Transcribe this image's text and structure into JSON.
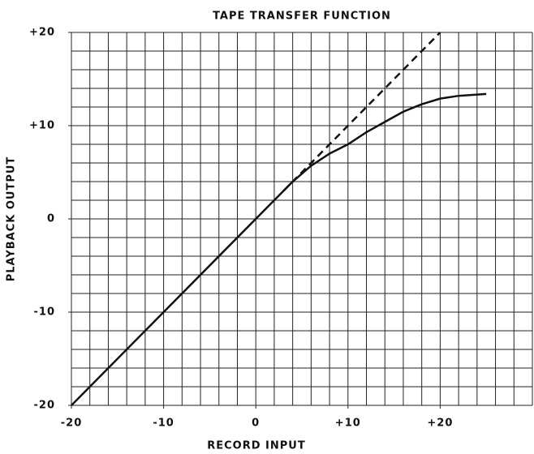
{
  "chart_data": {
    "type": "line",
    "title": "TAPE TRANSFER FUNCTION",
    "x_label": "RECORD INPUT",
    "y_label": "PLAYBACK OUTPUT",
    "xlim": [
      -20,
      30
    ],
    "ylim": [
      -20,
      20
    ],
    "xticks": [
      -20,
      -10,
      0,
      {
        "value": 10,
        "label": "+10"
      },
      {
        "value": 20,
        "label": "+20"
      }
    ],
    "yticks": [
      -20,
      -10,
      0,
      {
        "value": 10,
        "label": "+10"
      },
      {
        "value": 20,
        "label": "+20"
      }
    ],
    "xgrid": [
      -20,
      -18,
      -16,
      -14,
      -12,
      -10,
      -8,
      -6,
      -4,
      -2,
      0,
      2,
      4,
      6,
      8,
      10,
      12,
      14,
      16,
      18,
      20,
      22,
      24,
      26,
      28,
      30
    ],
    "ygrid": [
      -20,
      -18,
      -16,
      -14,
      -12,
      -10,
      -8,
      -6,
      -4,
      -2,
      0,
      2,
      4,
      6,
      8,
      10,
      12,
      14,
      16,
      18,
      20
    ],
    "grid": true,
    "series": [
      {
        "color": "#111111",
        "dash": false,
        "x": [
          -20,
          0,
          4,
          6,
          8,
          10,
          12,
          14,
          16,
          18,
          20,
          22,
          25
        ],
        "values": [
          -20,
          0,
          4,
          5.7,
          7,
          8,
          9.3,
          10.4,
          11.5,
          12.3,
          12.9,
          13.2,
          13.4
        ]
      },
      {
        "color": "#111111",
        "dash": true,
        "x": [
          3,
          20
        ],
        "values": [
          3,
          20
        ]
      }
    ]
  }
}
